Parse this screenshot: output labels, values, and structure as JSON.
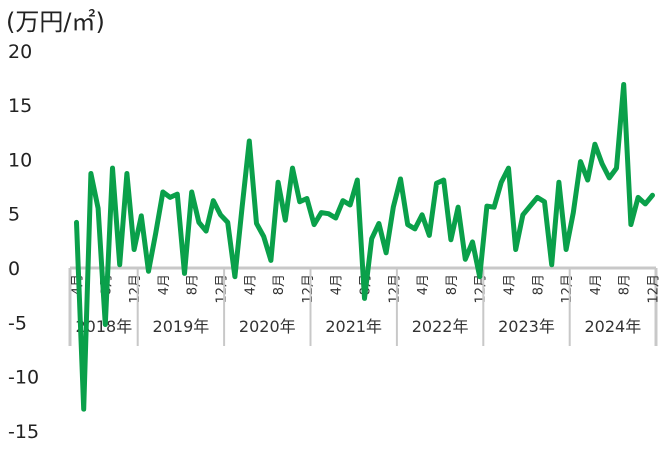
{
  "chart_data": {
    "type": "line",
    "unit_label": "(万円/㎡)",
    "ylim": [
      -15,
      20
    ],
    "yticks": [
      20,
      15,
      10,
      5,
      0,
      -5,
      -10,
      -15
    ],
    "series_color": "#0aa04a",
    "years": [
      "2018年",
      "2019年",
      "2020年",
      "2021年",
      "2022年",
      "2023年",
      "2024年"
    ],
    "month_ticks": [
      {
        "label": "4月",
        "i": 0
      },
      {
        "label": "8月",
        "i": 4
      },
      {
        "label": "12月",
        "i": 8
      },
      {
        "label": "4月",
        "i": 12
      },
      {
        "label": "8月",
        "i": 16
      },
      {
        "label": "12月",
        "i": 20
      },
      {
        "label": "4月",
        "i": 24
      },
      {
        "label": "8月",
        "i": 28
      },
      {
        "label": "12月",
        "i": 32
      },
      {
        "label": "4月",
        "i": 36
      },
      {
        "label": "8月",
        "i": 40
      },
      {
        "label": "12月",
        "i": 44
      },
      {
        "label": "4月",
        "i": 48
      },
      {
        "label": "8月",
        "i": 52
      },
      {
        "label": "12月",
        "i": 56
      },
      {
        "label": "4月",
        "i": 60
      },
      {
        "label": "8月",
        "i": 64
      },
      {
        "label": "12月",
        "i": 68
      },
      {
        "label": "4月",
        "i": 72
      },
      {
        "label": "8月",
        "i": 76
      },
      {
        "label": "12月",
        "i": 80
      }
    ],
    "x": [
      "2018-04",
      "2018-05",
      "2018-06",
      "2018-07",
      "2018-08",
      "2018-09",
      "2018-10",
      "2018-11",
      "2018-12",
      "2019-01",
      "2019-02",
      "2019-03",
      "2019-04",
      "2019-05",
      "2019-06",
      "2019-07",
      "2019-08",
      "2019-09",
      "2019-10",
      "2019-11",
      "2019-12",
      "2020-01",
      "2020-02",
      "2020-03",
      "2020-04",
      "2020-05",
      "2020-06",
      "2020-07",
      "2020-08",
      "2020-09",
      "2020-10",
      "2020-11",
      "2020-12",
      "2021-01",
      "2021-02",
      "2021-03",
      "2021-04",
      "2021-05",
      "2021-06",
      "2021-07",
      "2021-08",
      "2021-09",
      "2021-10",
      "2021-11",
      "2021-12",
      "2022-01",
      "2022-02",
      "2022-03",
      "2022-04",
      "2022-05",
      "2022-06",
      "2022-07",
      "2022-08",
      "2022-09",
      "2022-10",
      "2022-11",
      "2022-12",
      "2023-01",
      "2023-02",
      "2023-03",
      "2023-04",
      "2023-05",
      "2023-06",
      "2023-07",
      "2023-08",
      "2023-09",
      "2023-10",
      "2023-11",
      "2023-12",
      "2024-01",
      "2024-02",
      "2024-03",
      "2024-04",
      "2024-05",
      "2024-06",
      "2024-07",
      "2024-08",
      "2024-09",
      "2024-10",
      "2024-11",
      "2024-12"
    ],
    "values": [
      4.2,
      -13.0,
      8.7,
      5.5,
      -5.2,
      9.2,
      0.3,
      8.7,
      1.7,
      4.8,
      -0.3,
      3.2,
      7.0,
      6.5,
      6.8,
      -0.5,
      7.0,
      4.2,
      3.4,
      6.2,
      4.9,
      4.2,
      -0.8,
      5.6,
      11.7,
      4.1,
      2.9,
      0.7,
      7.9,
      4.4,
      9.2,
      6.1,
      6.4,
      4.0,
      5.1,
      5.0,
      4.6,
      6.2,
      5.8,
      8.1,
      -2.8,
      2.7,
      4.1,
      1.4,
      5.6,
      8.2,
      4.0,
      3.6,
      4.9,
      3.0,
      7.8,
      8.1,
      2.6,
      5.6,
      0.8,
      2.4,
      -0.8,
      5.7,
      5.6,
      7.9,
      9.2,
      1.7,
      4.9,
      5.7,
      6.5,
      6.1,
      0.3,
      7.9,
      1.7,
      5.1,
      9.8,
      8.1,
      11.4,
      9.6,
      8.3,
      9.2,
      16.9,
      4.0,
      6.5,
      5.9,
      6.7
    ],
    "grid": false,
    "legend": "none"
  }
}
